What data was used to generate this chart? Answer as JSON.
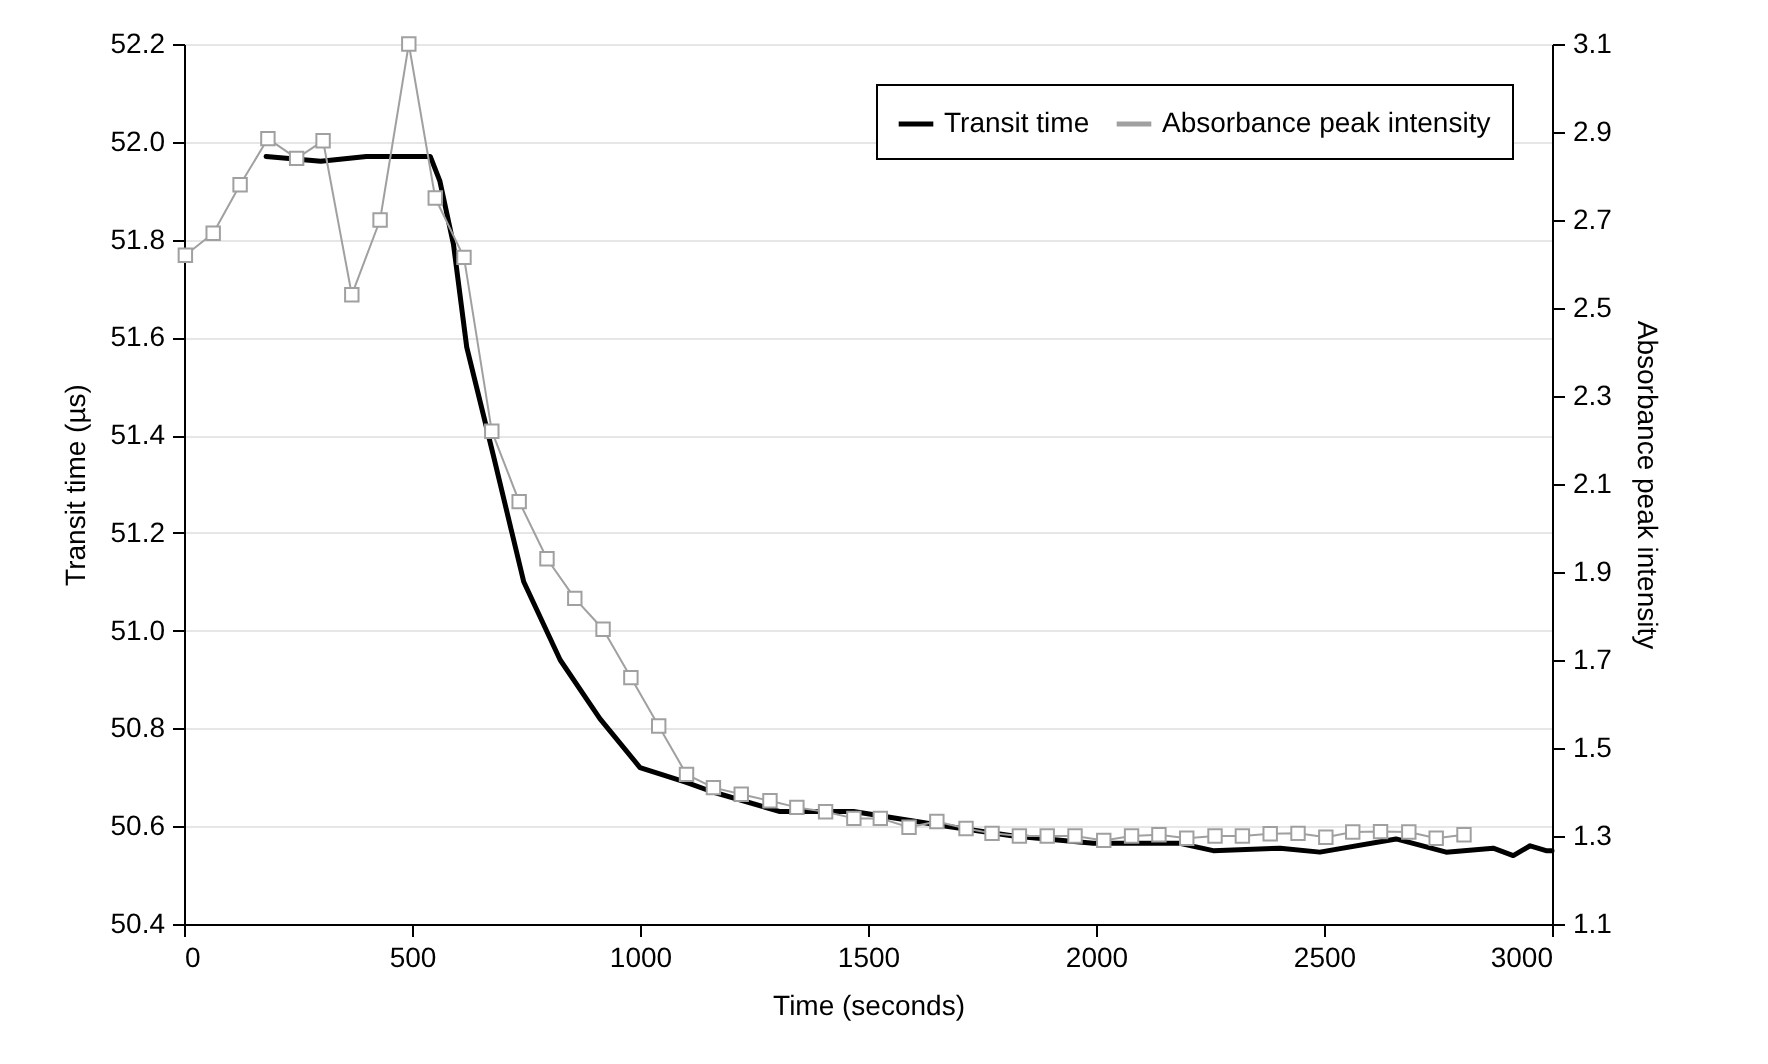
{
  "chart_data": {
    "type": "line",
    "xlabel": "Time (seconds)",
    "ylabel": "Transit time (µs)",
    "y2label": "Absorbance peak intensity",
    "xlim": [
      0,
      3000
    ],
    "xticks": [
      0,
      500,
      1000,
      1500,
      2000,
      2500,
      3000
    ],
    "ylim": [
      50.4,
      52.2
    ],
    "yticks": [
      50.4,
      50.6,
      50.8,
      {
        "value": 51,
        "label": "51.0"
      },
      51.2,
      51.4,
      51.6,
      51.8,
      {
        "value": 52,
        "label": "52.0"
      },
      52.2
    ],
    "y2lim": [
      1.1,
      3.1
    ],
    "y2ticks": [
      1.1,
      1.3,
      1.5,
      1.7,
      1.9,
      2.1,
      2.3,
      2.5,
      2.7,
      2.9,
      3.1
    ],
    "grid": "y",
    "legend": "top right",
    "line_style": "solid",
    "series": [
      {
        "name": "Transit time",
        "color": "#000000",
        "marker": "none",
        "x": [
          180,
          300,
          400,
          540,
          561,
          591,
          620,
          678,
          745,
          825,
          912,
          1000,
          1100,
          1160,
          1307,
          1468,
          1672,
          1819,
          1994,
          2184,
          2257,
          2404,
          2491,
          2658,
          2768,
          2871,
          2915,
          2952,
          2987,
          3000
        ],
        "values": [
          51.97,
          51.96,
          51.97,
          51.97,
          51.92,
          51.79,
          51.58,
          51.36,
          51.1,
          50.94,
          50.82,
          50.72,
          50.69,
          50.67,
          50.63,
          50.63,
          50.6,
          50.58,
          50.565,
          50.565,
          50.55,
          50.555,
          50.547,
          50.574,
          50.547,
          50.555,
          50.54,
          50.56,
          50.55,
          50.55
        ]
      },
      {
        "name": "Absorbance peak intensity",
        "color": "#a0a0a0",
        "marker": "square",
        "axis": "y2",
        "x": [
          3,
          64,
          123,
          184,
          247,
          305,
          368,
          430,
          493,
          551,
          614,
          675,
          735,
          796,
          857,
          919,
          980,
          1041,
          1102,
          1161,
          1222,
          1285,
          1344,
          1407,
          1469,
          1527,
          1590,
          1651,
          1715,
          1772,
          1832,
          1893,
          1954,
          2017,
          2078,
          2138,
          2199,
          2261,
          2321,
          2382,
          2443,
          2504,
          2563,
          2624,
          2686,
          2746,
          2807
        ],
        "values": [
          2.62,
          2.67,
          2.78,
          2.885,
          2.84,
          2.88,
          2.53,
          2.7,
          3.1,
          2.75,
          2.615,
          2.22,
          2.06,
          1.93,
          1.84,
          1.77,
          1.66,
          1.55,
          1.44,
          1.41,
          1.395,
          1.38,
          1.365,
          1.355,
          1.34,
          1.34,
          1.32,
          1.333,
          1.317,
          1.306,
          1.3,
          1.3,
          1.3,
          1.29,
          1.3,
          1.303,
          1.295,
          1.3,
          1.3,
          1.305,
          1.306,
          1.297,
          1.309,
          1.31,
          1.309,
          1.295,
          1.303
        ]
      }
    ]
  }
}
